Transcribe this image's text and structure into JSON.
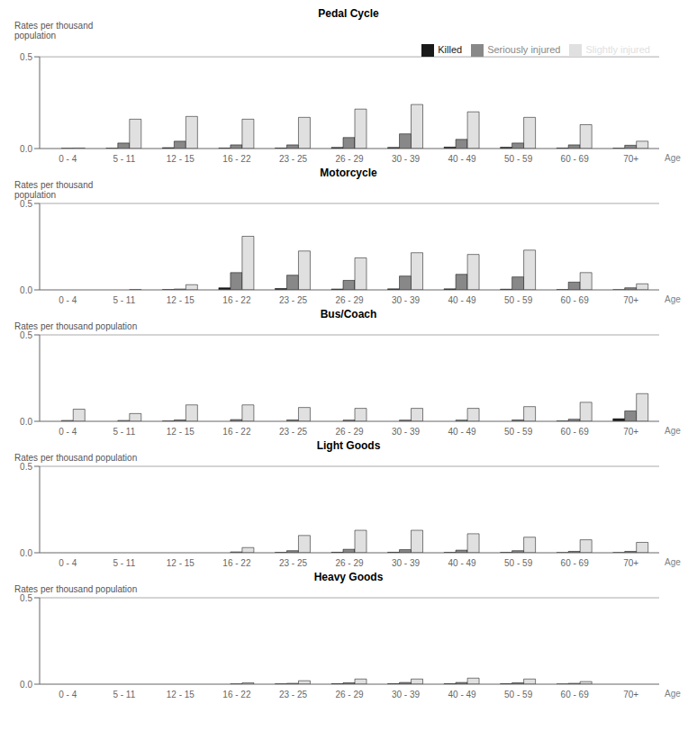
{
  "chart_data": [
    {
      "type": "bar",
      "title": "Pedal Cycle",
      "ylabel": "Rates per thousand\npopulation",
      "xlabel": "Age",
      "categories": [
        "0 - 4",
        "5 - 11",
        "12 - 15",
        "16 - 22",
        "23 - 25",
        "26 - 29",
        "30 - 39",
        "40 - 49",
        "50 - 59",
        "60 - 69",
        "70+"
      ],
      "series": [
        {
          "name": "Killed",
          "color": "#1a1a1a",
          "values": [
            0.0,
            0.002,
            0.005,
            0.003,
            0.003,
            0.006,
            0.006,
            0.008,
            0.007,
            0.003,
            0.002
          ]
        },
        {
          "name": "Seriously injured",
          "color": "#888888",
          "values": [
            0.002,
            0.03,
            0.04,
            0.02,
            0.02,
            0.06,
            0.08,
            0.05,
            0.03,
            0.02,
            0.018
          ]
        },
        {
          "name": "Slightly injured",
          "color": "#e0e0e0",
          "values": [
            0.003,
            0.16,
            0.175,
            0.16,
            0.17,
            0.215,
            0.24,
            0.2,
            0.17,
            0.13,
            0.04
          ]
        }
      ],
      "ylim": [
        0,
        0.5
      ],
      "yticks": [
        {
          "value": 0,
          "label": "0.0"
        },
        0.5
      ],
      "grid": false,
      "legend": "upper right"
    },
    {
      "type": "bar",
      "title": "Motorcycle",
      "ylabel": "Rates per thousand\npopulation",
      "xlabel": "Age",
      "categories": [
        "0 - 4",
        "5 - 11",
        "12 - 15",
        "16 - 22",
        "23 - 25",
        "26 - 29",
        "30 - 39",
        "40 - 49",
        "50 - 59",
        "60 - 69",
        "70+"
      ],
      "series": [
        {
          "name": "Killed",
          "color": "#1a1a1a",
          "values": [
            0.0,
            0.0,
            0.002,
            0.012,
            0.008,
            0.005,
            0.006,
            0.006,
            0.004,
            0.002,
            0.001
          ]
        },
        {
          "name": "Seriously injured",
          "color": "#888888",
          "values": [
            0.0,
            0.0,
            0.005,
            0.1,
            0.085,
            0.055,
            0.08,
            0.09,
            0.075,
            0.045,
            0.012
          ]
        },
        {
          "name": "Slightly injured",
          "color": "#e0e0e0",
          "values": [
            0.0,
            0.002,
            0.03,
            0.31,
            0.225,
            0.185,
            0.215,
            0.205,
            0.23,
            0.1,
            0.035
          ]
        }
      ],
      "ylim": [
        0,
        0.5
      ],
      "yticks": [
        {
          "value": 0,
          "label": "0.0"
        },
        0.5
      ],
      "grid": false
    },
    {
      "type": "bar",
      "title": "Bus/Coach",
      "ylabel": "Rates per thousand population",
      "xlabel": "Age",
      "categories": [
        "0 - 4",
        "5 - 11",
        "12 - 15",
        "16 - 22",
        "23 - 25",
        "26 - 29",
        "30 - 39",
        "40 - 49",
        "50 - 59",
        "60 - 69",
        "70+"
      ],
      "series": [
        {
          "name": "Killed",
          "color": "#1a1a1a",
          "values": [
            0.0,
            0.0,
            0.002,
            0.0,
            0.0,
            0.0,
            0.0,
            0.0,
            0.0,
            0.002,
            0.015
          ]
        },
        {
          "name": "Seriously injured",
          "color": "#888888",
          "values": [
            0.005,
            0.005,
            0.008,
            0.01,
            0.008,
            0.007,
            0.007,
            0.007,
            0.008,
            0.012,
            0.06
          ]
        },
        {
          "name": "Slightly injured",
          "color": "#e0e0e0",
          "values": [
            0.07,
            0.045,
            0.095,
            0.095,
            0.08,
            0.075,
            0.075,
            0.075,
            0.085,
            0.11,
            0.16
          ]
        }
      ],
      "ylim": [
        0,
        0.5
      ],
      "yticks": [
        {
          "value": 0,
          "label": "0.0"
        },
        0.5
      ],
      "grid": false
    },
    {
      "type": "bar",
      "title": "Light Goods",
      "ylabel": "Rates per thousand population",
      "xlabel": "Age",
      "categories": [
        "0 - 4",
        "5 - 11",
        "12 - 15",
        "16 - 22",
        "23 - 25",
        "26 - 29",
        "30 - 39",
        "40 - 49",
        "50 - 59",
        "60 - 69",
        "70+"
      ],
      "series": [
        {
          "name": "Killed",
          "color": "#1a1a1a",
          "values": [
            0.0,
            0.0,
            0.0,
            0.0,
            0.002,
            0.003,
            0.003,
            0.002,
            0.002,
            0.001,
            0.001
          ]
        },
        {
          "name": "Seriously injured",
          "color": "#888888",
          "values": [
            0.0,
            0.0,
            0.0,
            0.005,
            0.012,
            0.02,
            0.018,
            0.015,
            0.012,
            0.008,
            0.008
          ]
        },
        {
          "name": "Slightly injured",
          "color": "#e0e0e0",
          "values": [
            0.0,
            0.0,
            0.0,
            0.03,
            0.1,
            0.13,
            0.13,
            0.11,
            0.09,
            0.075,
            0.06
          ]
        }
      ],
      "ylim": [
        0,
        0.5
      ],
      "yticks": [
        {
          "value": 0,
          "label": "0.0"
        },
        0.5
      ],
      "grid": false
    },
    {
      "type": "bar",
      "title": "Heavy Goods",
      "ylabel": "Rates per thousand population",
      "xlabel": "Age",
      "categories": [
        "0 - 4",
        "5 - 11",
        "12 - 15",
        "16 - 22",
        "23 - 25",
        "26 - 29",
        "30 - 39",
        "40 - 49",
        "50 - 59",
        "60 - 69",
        "70+"
      ],
      "series": [
        {
          "name": "Killed",
          "color": "#1a1a1a",
          "values": [
            0.0,
            0.0,
            0.0,
            0.0,
            0.002,
            0.003,
            0.003,
            0.003,
            0.003,
            0.001,
            0.0
          ]
        },
        {
          "name": "Seriously injured",
          "color": "#888888",
          "values": [
            0.0,
            0.0,
            0.0,
            0.002,
            0.005,
            0.008,
            0.01,
            0.01,
            0.008,
            0.005,
            0.0
          ]
        },
        {
          "name": "Slightly injured",
          "color": "#e0e0e0",
          "values": [
            0.0,
            0.0,
            0.0,
            0.008,
            0.02,
            0.03,
            0.03,
            0.035,
            0.03,
            0.015,
            0.0
          ]
        }
      ],
      "ylim": [
        0,
        0.5
      ],
      "yticks": [
        {
          "value": 0,
          "label": "0.0"
        },
        0.5
      ],
      "grid": false
    }
  ]
}
